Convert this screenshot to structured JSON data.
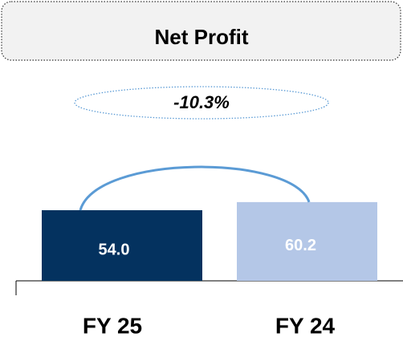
{
  "chart_data": {
    "type": "bar",
    "title": "Net Profit",
    "annotation": "-10.3%",
    "categories": [
      "FY 25",
      "FY 24"
    ],
    "values": [
      54.0,
      60.2
    ],
    "value_labels": [
      "54.0",
      "60.2"
    ],
    "colors": [
      "#04325f",
      "#b4c7e7"
    ]
  }
}
